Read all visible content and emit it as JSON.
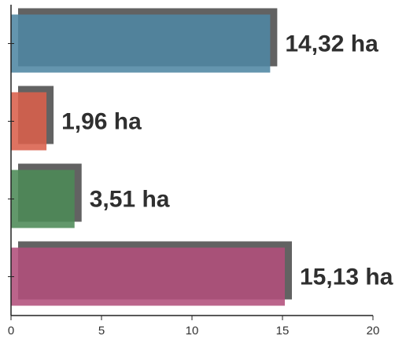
{
  "chart_data": {
    "type": "bar",
    "orientation": "horizontal",
    "categories": [
      "",
      "",
      "",
      ""
    ],
    "values": [
      14.32,
      1.96,
      3.51,
      15.13
    ],
    "value_labels": [
      "14,32 ha",
      "1,96 ha",
      "3,51 ha",
      "15,13 ha"
    ],
    "colors": [
      "#4f86a3",
      "#d9604b",
      "#4c8a57",
      "#b24f7b"
    ],
    "shadow_color": "#5a5a5a",
    "xlim": [
      0,
      20
    ],
    "x_ticks": [
      0,
      5,
      10,
      15,
      20
    ],
    "x_tick_labels": [
      "0",
      "5",
      "10",
      "15",
      "20"
    ],
    "grid": false,
    "title": "",
    "xlabel": "",
    "ylabel": ""
  }
}
